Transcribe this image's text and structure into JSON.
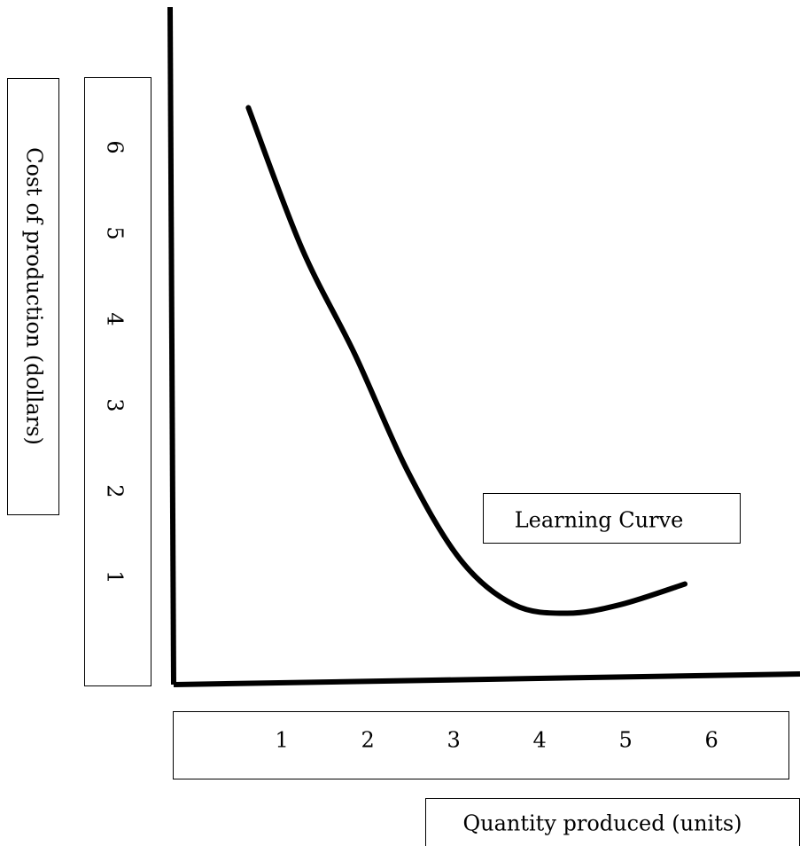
{
  "chart_data": {
    "type": "line",
    "x_label": "Quantity produced (units)",
    "y_label": "Cost of production (dollars)",
    "annotation": "Learning Curve",
    "series": [
      {
        "name": "Learning Curve",
        "color": "#000000",
        "x": [
          0.61,
          1.23,
          1.85,
          2.46,
          3.08,
          3.7,
          4.32,
          4.94,
          5.69
        ],
        "values": [
          6.46,
          4.83,
          3.59,
          2.24,
          1.2,
          0.68,
          0.58,
          0.68,
          0.92
        ]
      }
    ],
    "xlim": [
      -0.27,
      7.03
    ],
    "ylim": [
      -0.25,
      7.63
    ],
    "xticks": [
      1,
      2,
      3,
      4,
      5,
      6
    ],
    "yticks": [
      1,
      2,
      3,
      4,
      5,
      6
    ],
    "grid": false
  }
}
